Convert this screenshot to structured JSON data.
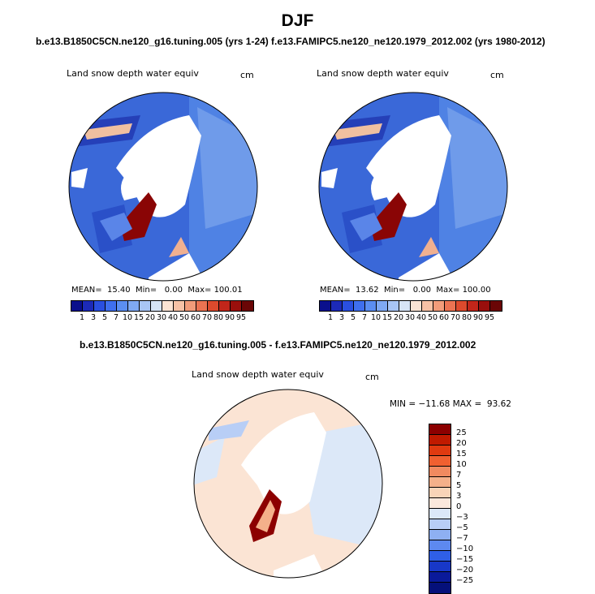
{
  "title": "DJF",
  "panels": [
    {
      "subtitle": "b.e13.B1850C5CN.ne120_g16.tuning.005 (yrs 1-24)",
      "variable": "Land snow depth water equiv",
      "units": "cm",
      "mean_label": "MEAN=",
      "mean": "15.40",
      "min_label": "Min=",
      "min": "0.00",
      "max_label": "Max=",
      "max": "100.01"
    },
    {
      "subtitle": "f.e13.FAMIPC5.ne120_ne120.1979_2012.002 (yrs 1980-2012)",
      "variable": "Land snow depth water equiv",
      "units": "cm",
      "mean_label": "MEAN=",
      "mean": "13.62",
      "min_label": "Min=",
      "min": "0.00",
      "max_label": "Max=",
      "max": "100.00"
    }
  ],
  "diff_panel": {
    "subtitle": "b.e13.B1850C5CN.ne120_g16.tuning.005 - f.e13.FAMIPC5.ne120_ne120.1979_2012.002",
    "variable": "Land snow depth water equiv",
    "units": "cm",
    "minmax": "MIN = −11.68 MAX =  93.62"
  },
  "colorbar_abs": {
    "labels": [
      "1",
      "3",
      "5",
      "7",
      "10",
      "15",
      "20",
      "30",
      "40",
      "50",
      "60",
      "70",
      "80",
      "90",
      "95"
    ],
    "colors": [
      "#0a0f8c",
      "#1c2ab8",
      "#2a4fe0",
      "#3f6fee",
      "#5b8ef2",
      "#7fa9f3",
      "#a8c5f5",
      "#d6e4f7",
      "#fbe4d4",
      "#f7c2a6",
      "#f29c7a",
      "#eb7352",
      "#dd4a2d",
      "#c2261a",
      "#9a0f0c",
      "#6a0606"
    ]
  },
  "colorbar_diff": {
    "labels": [
      "25",
      "20",
      "15",
      "10",
      "7",
      "5",
      "3",
      "0",
      "−3",
      "−5",
      "−7",
      "−10",
      "−15",
      "−20",
      "−25"
    ],
    "colors": [
      "#8c0000",
      "#c01a00",
      "#e03a10",
      "#f06030",
      "#f08a60",
      "#f4b08a",
      "#f8d4b8",
      "#fbe8dc",
      "#dce8f8",
      "#b8cef6",
      "#8eb0f2",
      "#5d89f0",
      "#2f5fe6",
      "#1838c8",
      "#0a1a9a",
      "#05107a"
    ]
  }
}
